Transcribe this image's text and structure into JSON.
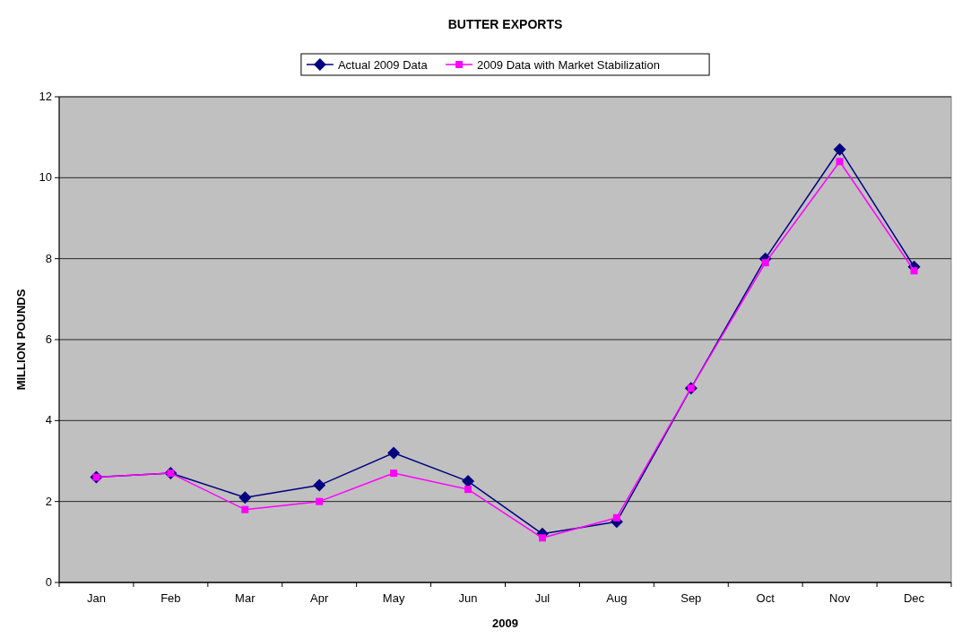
{
  "chart_data": {
    "type": "line",
    "title": "BUTTER EXPORTS",
    "xlabel": "2009",
    "ylabel": "MILLION POUNDS",
    "categories": [
      "Jan",
      "Feb",
      "Mar",
      "Apr",
      "May",
      "Jun",
      "Jul",
      "Aug",
      "Sep",
      "Oct",
      "Nov",
      "Dec"
    ],
    "series": [
      {
        "name": "Actual 2009 Data",
        "color": "#000080",
        "marker": "diamond",
        "values": [
          2.6,
          2.7,
          2.1,
          2.4,
          3.2,
          2.5,
          1.2,
          1.5,
          4.8,
          8.0,
          10.7,
          7.8
        ]
      },
      {
        "name": "2009 Data with Market Stabilization",
        "color": "#ff00ff",
        "marker": "square",
        "values": [
          2.6,
          2.7,
          1.8,
          2.0,
          2.7,
          2.3,
          1.1,
          1.6,
          4.8,
          7.9,
          10.4,
          7.7
        ]
      }
    ],
    "ylim": [
      0,
      12
    ],
    "yticks": [
      0,
      2,
      4,
      6,
      8,
      10,
      12
    ],
    "grid": "y",
    "legend": "top"
  }
}
